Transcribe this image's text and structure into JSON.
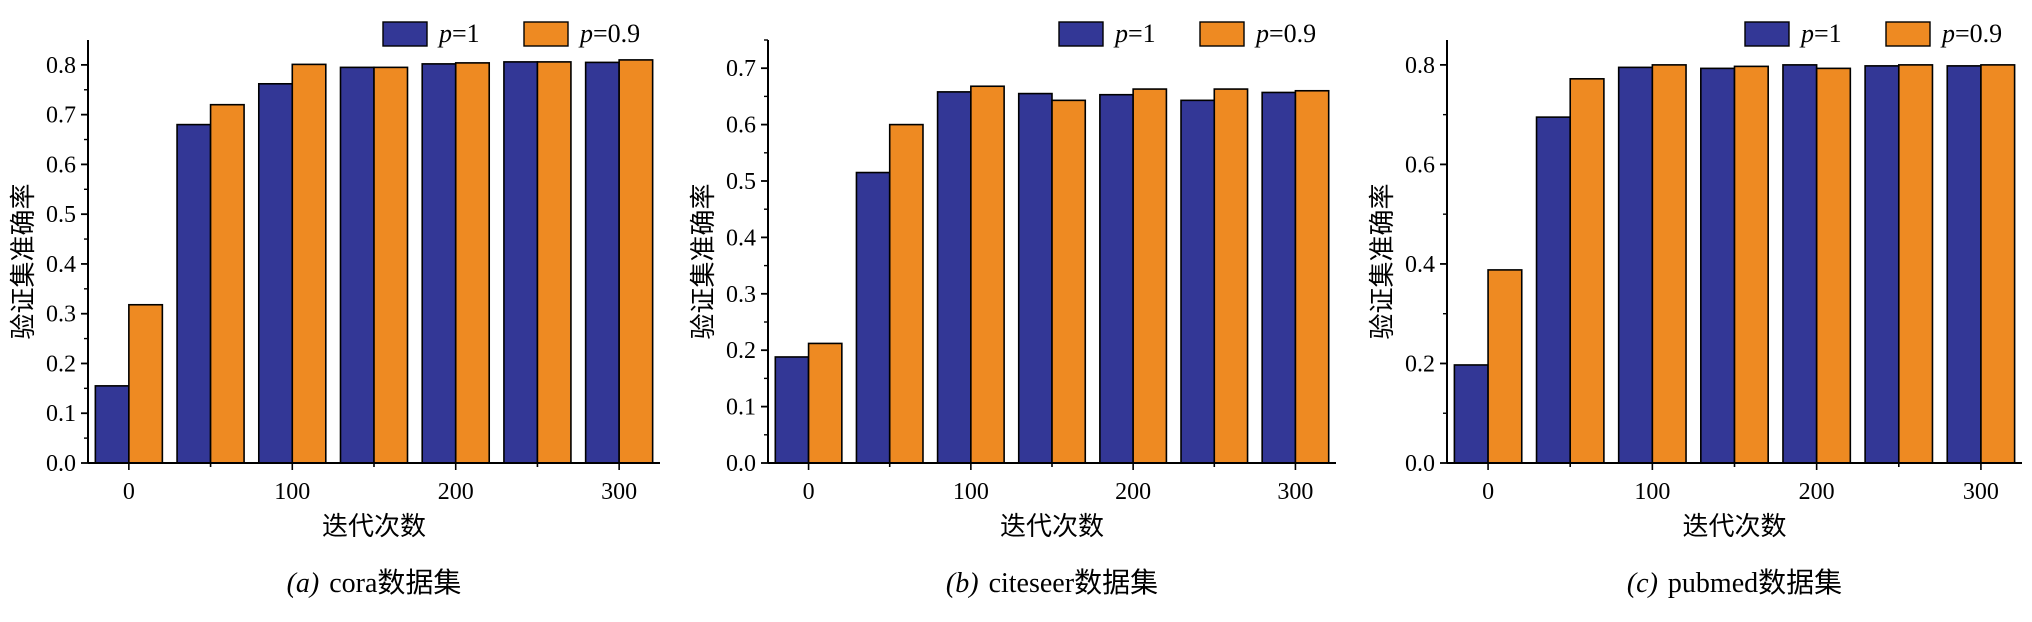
{
  "chart_data": [
    {
      "type": "bar",
      "panel": "(a)",
      "caption_name": "cora",
      "caption_suffix": "数据集",
      "xlabel": "迭代次数",
      "ylabel": "验证集准确率",
      "x_tick_labels": [
        "0",
        "100",
        "200",
        "300"
      ],
      "y_ticks": [
        "0.0",
        "0.1",
        "0.2",
        "0.3",
        "0.4",
        "0.5",
        "0.6",
        "0.7",
        "0.8"
      ],
      "ylim": [
        0,
        0.85
      ],
      "categories": [
        0,
        50,
        100,
        150,
        200,
        250,
        300
      ],
      "series": [
        {
          "name": "p=1",
          "values": [
            0.155,
            0.68,
            0.762,
            0.795,
            0.802,
            0.806,
            0.805
          ]
        },
        {
          "name": "p=0.9",
          "values": [
            0.318,
            0.72,
            0.801,
            0.795,
            0.804,
            0.806,
            0.81
          ]
        }
      ]
    },
    {
      "type": "bar",
      "panel": "(b)",
      "caption_name": "citeseer",
      "caption_suffix": "数据集",
      "xlabel": "迭代次数",
      "ylabel": "验证集准确率",
      "x_tick_labels": [
        "0",
        "100",
        "200",
        "300"
      ],
      "y_ticks": [
        "0.0",
        "0.1",
        "0.2",
        "0.3",
        "0.4",
        "0.5",
        "0.6",
        "0.7"
      ],
      "ylim": [
        0,
        0.75
      ],
      "categories": [
        0,
        50,
        100,
        150,
        200,
        250,
        300
      ],
      "series": [
        {
          "name": "p=1",
          "values": [
            0.188,
            0.515,
            0.658,
            0.655,
            0.653,
            0.643,
            0.657
          ]
        },
        {
          "name": "p=0.9",
          "values": [
            0.212,
            0.6,
            0.668,
            0.643,
            0.663,
            0.663,
            0.66
          ]
        }
      ]
    },
    {
      "type": "bar",
      "panel": "(c)",
      "caption_name": "pubmed",
      "caption_suffix": "数据集",
      "xlabel": "迭代次数",
      "ylabel": "验证集准确率",
      "x_tick_labels": [
        "0",
        "100",
        "200",
        "300"
      ],
      "y_ticks": [
        "0.0",
        "0.2",
        "0.4",
        "0.6",
        "0.8"
      ],
      "ylim": [
        0,
        0.85
      ],
      "categories": [
        0,
        50,
        100,
        150,
        200,
        250,
        300
      ],
      "series": [
        {
          "name": "p=1",
          "values": [
            0.197,
            0.695,
            0.795,
            0.793,
            0.8,
            0.798,
            0.798
          ]
        },
        {
          "name": "p=0.9",
          "values": [
            0.388,
            0.772,
            0.8,
            0.797,
            0.793,
            0.8,
            0.8
          ]
        }
      ]
    }
  ],
  "legend": {
    "position": "top-right",
    "italic_var": "p",
    "values": [
      "=1",
      "=0.9"
    ]
  },
  "colors": {
    "series1": "#333796",
    "series2": "#ee8a22",
    "axis": "#000000"
  }
}
